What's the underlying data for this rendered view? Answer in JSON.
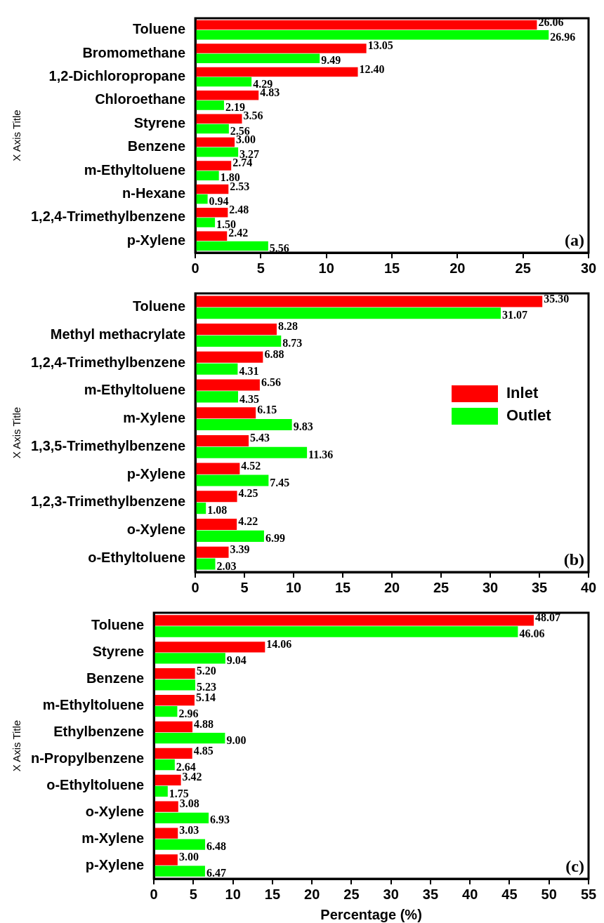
{
  "chart_data": [
    {
      "type": "bar",
      "orientation": "horizontal",
      "ylabel": "X Axis Title",
      "categories": [
        "Toluene",
        "Bromomethane",
        "1,2-Dichloropropane",
        "Chloroethane",
        "Styrene",
        "Benzene",
        "m-Ethyltoluene",
        "n-Hexane",
        "1,2,4-Trimethylbenzene",
        "p-Xylene"
      ],
      "series": [
        {
          "color": "#ff0000",
          "values": [
            26.06,
            13.05,
            12.4,
            4.83,
            3.56,
            3.0,
            2.74,
            2.53,
            2.48,
            2.42
          ],
          "value_labels": [
            "26.06",
            "13.05",
            "12.40",
            "4.83",
            "3.56",
            "3.00",
            "2.74",
            "2.53",
            "2.48",
            "2.42"
          ]
        },
        {
          "color": "#00ff00",
          "values": [
            26.96,
            9.49,
            4.29,
            2.19,
            2.56,
            3.27,
            1.8,
            0.94,
            1.5,
            5.56
          ],
          "value_labels": [
            "26.96",
            "9.49",
            "4.29",
            "2.19",
            "2.56",
            "3.27",
            "1.80",
            "0.94",
            "1.50",
            "5.56"
          ]
        }
      ],
      "xlim": [
        0,
        30
      ],
      "xticks": [
        0,
        5,
        10,
        15,
        20,
        25,
        30
      ],
      "grid": false,
      "legend": false,
      "annotations": [
        "(a)"
      ]
    },
    {
      "type": "bar",
      "orientation": "horizontal",
      "ylabel": "X Axis Title",
      "categories": [
        "Toluene",
        "Methyl methacrylate",
        "1,2,4-Trimethylbenzene",
        "m-Ethyltoluene",
        "m-Xylene",
        "1,3,5-Trimethylbenzene",
        "p-Xylene",
        "1,2,3-Trimethylbenzene",
        "o-Xylene",
        "o-Ethyltoluene"
      ],
      "series": [
        {
          "name": "Inlet",
          "color": "#ff0000",
          "values": [
            35.3,
            8.28,
            6.88,
            6.56,
            6.15,
            5.43,
            4.52,
            4.25,
            4.22,
            3.39
          ],
          "value_labels": [
            "35.30",
            "8.28",
            "6.88",
            "6.56",
            "6.15",
            "5.43",
            "4.52",
            "4.25",
            "4.22",
            "3.39"
          ]
        },
        {
          "name": "Outlet",
          "color": "#00ff00",
          "values": [
            31.07,
            8.73,
            4.31,
            4.35,
            9.83,
            11.36,
            7.45,
            1.08,
            6.99,
            2.03
          ],
          "value_labels": [
            "31.07",
            "8.73",
            "4.31",
            "4.35",
            "9.83",
            "11.36",
            "7.45",
            "1.08",
            "6.99",
            "2.03"
          ]
        }
      ],
      "xlim": [
        0,
        40
      ],
      "xticks": [
        0,
        5,
        10,
        15,
        20,
        25,
        30,
        35,
        40
      ],
      "grid": false,
      "legend": "right",
      "annotations": [
        "(b)"
      ]
    },
    {
      "type": "bar",
      "orientation": "horizontal",
      "ylabel": "X Axis Title",
      "xlabel": "Percentage (%)",
      "categories": [
        "Toluene",
        "Styrene",
        "Benzene",
        "m-Ethyltoluene",
        "Ethylbenzene",
        "n-Propylbenzene",
        "o-Ethyltoluene",
        "o-Xylene",
        "m-Xylene",
        "p-Xylene"
      ],
      "series": [
        {
          "color": "#ff0000",
          "values": [
            48.07,
            14.06,
            5.2,
            5.14,
            4.88,
            4.85,
            3.42,
            3.08,
            3.03,
            3.0
          ],
          "value_labels": [
            "48.07",
            "14.06",
            "5.20",
            "5.14",
            "4.88",
            "4.85",
            "3.42",
            "3.08",
            "3.03",
            "3.00"
          ]
        },
        {
          "color": "#00ff00",
          "values": [
            46.06,
            9.04,
            5.23,
            2.96,
            9.0,
            2.64,
            1.75,
            6.93,
            6.48,
            6.47
          ],
          "value_labels": [
            "46.06",
            "9.04",
            "5.23",
            "2.96",
            "9.00",
            "2.64",
            "1.75",
            "6.93",
            "6.48",
            "6.47"
          ]
        }
      ],
      "xlim": [
        0,
        55
      ],
      "xticks": [
        0,
        5,
        10,
        15,
        20,
        25,
        30,
        35,
        40,
        45,
        50,
        55
      ],
      "grid": false,
      "legend": false,
      "annotations": [
        "(c)"
      ]
    }
  ]
}
